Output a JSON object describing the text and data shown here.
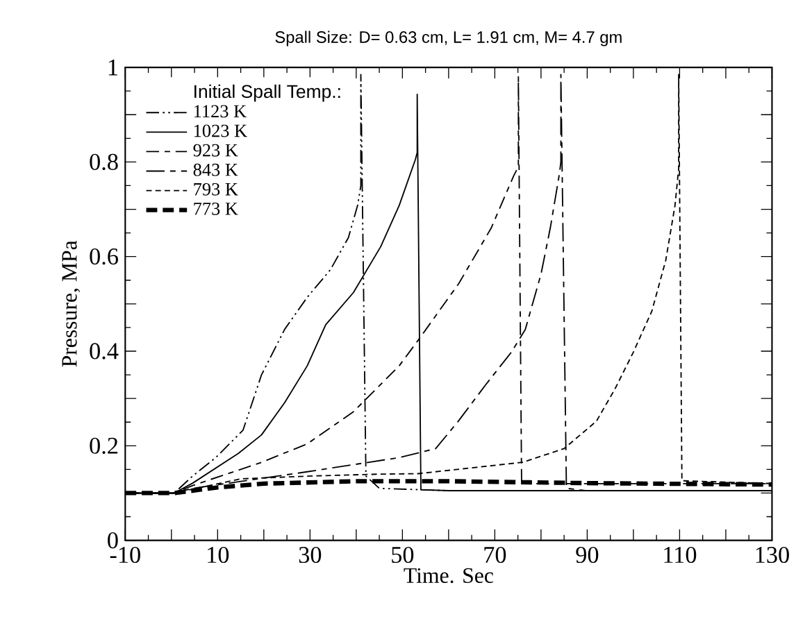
{
  "chart_data": {
    "type": "line",
    "title": "Spall Size: D= 0.63 cm, L= 1.91 cm, M= 4.7 gm",
    "xlabel": "Time. Sec",
    "ylabel": "Pressure, MPa",
    "legend_title": "Initial Spall Temp.:",
    "legend": "top left",
    "grid": false,
    "marker": "none",
    "xlim": [
      -10,
      130
    ],
    "ylim": [
      0,
      1
    ],
    "xticks": [
      -10,
      {
        "value": 0,
        "label": null
      },
      10,
      {
        "value": 20,
        "label": null
      },
      30,
      {
        "value": 40,
        "label": null
      },
      50,
      {
        "value": 60,
        "label": null
      },
      70,
      {
        "value": 80,
        "label": null
      },
      90,
      {
        "value": 100,
        "label": null
      },
      110,
      {
        "value": 120,
        "label": null
      },
      130
    ],
    "yticks": [
      0,
      {
        "value": 0.1,
        "label": null
      },
      0.2,
      {
        "value": 0.3,
        "label": null
      },
      0.4,
      {
        "value": 0.5,
        "label": null
      },
      0.6,
      {
        "value": 0.7,
        "label": null
      },
      0.8,
      {
        "value": 0.9,
        "label": null
      },
      1
    ],
    "series": [
      {
        "name": "1123 K",
        "color": "#000000",
        "line_style": "dashed",
        "x": [
          -10,
          0.6,
          4.6,
          9.6,
          15.5,
          19.5,
          24.5,
          29.4,
          34.4,
          38.3,
          40.3,
          41.0,
          41.0,
          42.1,
          45,
          60,
          130
        ],
        "values": [
          0.1,
          0.1,
          0.136,
          0.175,
          0.233,
          0.35,
          0.446,
          0.514,
          0.572,
          0.64,
          0.708,
          0.75,
          0.985,
          0.136,
          0.11,
          0.105,
          0.105
        ]
      },
      {
        "name": "1023 K",
        "color": "#000000",
        "line_style": "solid",
        "x": [
          -10,
          0.6,
          4.6,
          14.5,
          19.5,
          24.5,
          29.4,
          33.4,
          39.4,
          45.3,
          49.3,
          52.8,
          53.2,
          53.2,
          54.0,
          60,
          130
        ],
        "values": [
          0.1,
          0.1,
          0.121,
          0.184,
          0.223,
          0.291,
          0.369,
          0.456,
          0.524,
          0.621,
          0.708,
          0.805,
          0.82,
          0.943,
          0.107,
          0.105,
          0.105
        ]
      },
      {
        "name": "923 K",
        "color": "#000000",
        "line_style": "dashed",
        "x": [
          -10,
          0.6,
          4.6,
          19.5,
          29.4,
          39.4,
          49.3,
          53.7,
          62.2,
          69.2,
          74.1,
          75.1,
          75.1,
          75.8,
          80,
          130
        ],
        "values": [
          0.1,
          0.1,
          0.116,
          0.165,
          0.204,
          0.272,
          0.369,
          0.427,
          0.543,
          0.66,
          0.771,
          0.79,
          0.98,
          0.12,
          0.12,
          0.12
        ]
      },
      {
        "name": "843 K",
        "color": "#000000",
        "line_style": "dashed",
        "x": [
          -10,
          0.6,
          4.6,
          29.4,
          49.3,
          57.2,
          62.1,
          68.1,
          73.6,
          76.6,
          80,
          82,
          84,
          84.3,
          84.3,
          85.5,
          90,
          130
        ],
        "values": [
          0.1,
          0.1,
          0.11,
          0.145,
          0.175,
          0.194,
          0.252,
          0.33,
          0.398,
          0.446,
          0.563,
          0.66,
          0.776,
          0.8,
          0.985,
          0.11,
          0.105,
          0.105
        ]
      },
      {
        "name": "793 K",
        "color": "#000000",
        "line_style": "dashed",
        "x": [
          -10,
          0.6,
          15,
          30,
          45,
          53.4,
          76,
          85,
          92,
          96,
          100,
          104,
          107,
          109,
          109.8,
          109.8,
          110.5,
          130
        ],
        "values": [
          0.1,
          0.1,
          0.13,
          0.136,
          0.14,
          0.141,
          0.165,
          0.194,
          0.252,
          0.32,
          0.398,
          0.485,
          0.592,
          0.708,
          0.786,
          0.985,
          0.126,
          0.12
        ]
      },
      {
        "name": "773 K",
        "color": "#000000",
        "line_style": "dashed",
        "x": [
          -10,
          0.6,
          10,
          20,
          40,
          60,
          90,
          130
        ],
        "values": [
          0.1,
          0.1,
          0.112,
          0.12,
          0.125,
          0.125,
          0.121,
          0.118
        ]
      }
    ]
  }
}
